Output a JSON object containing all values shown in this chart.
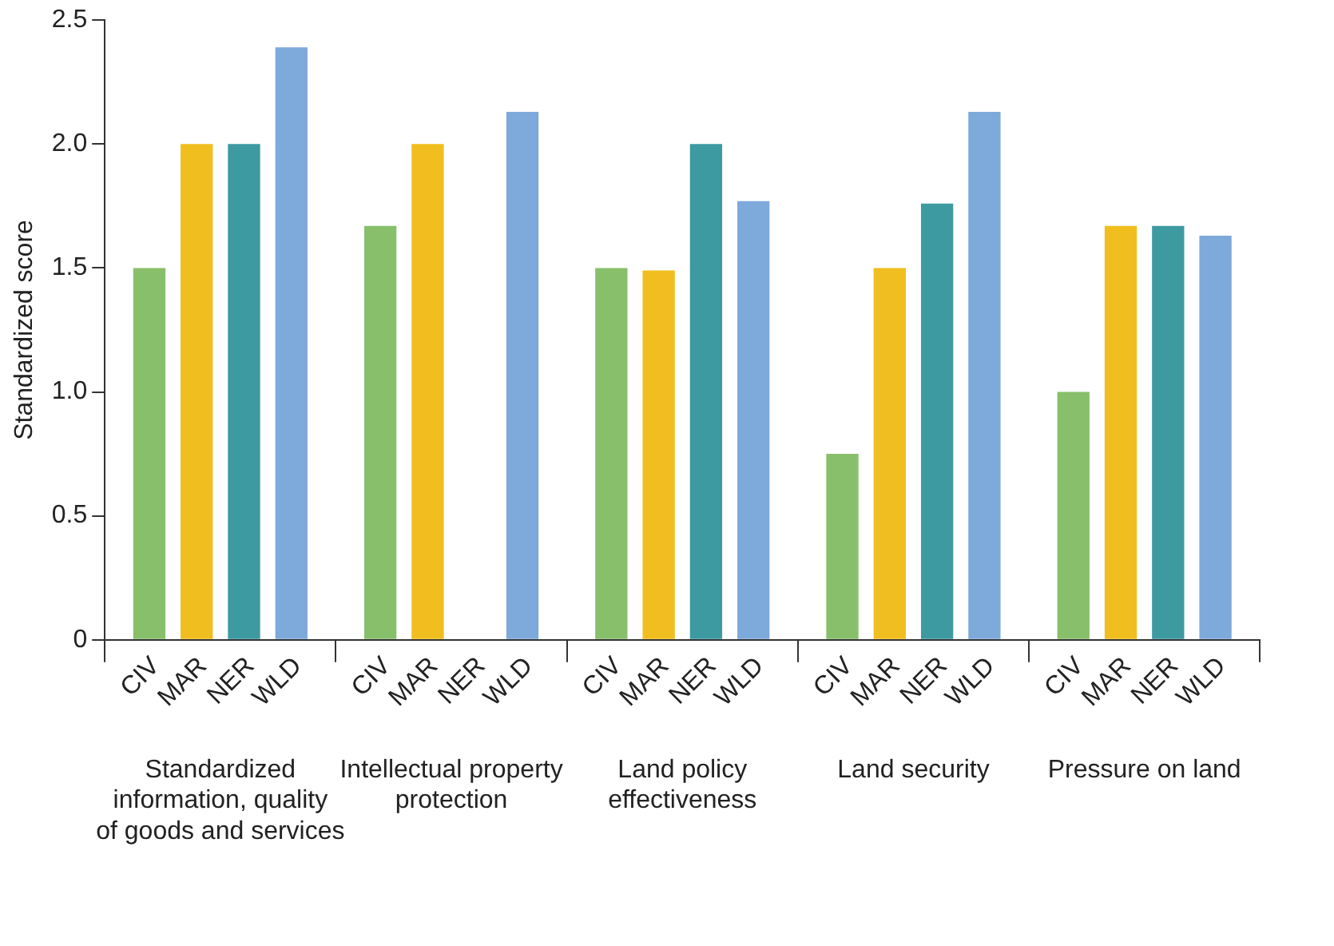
{
  "chart_data": {
    "type": "bar",
    "ylabel": "Standardized score",
    "categories": [
      "Standardized information, quality of goods and services",
      "Intellectual property protection",
      "Land policy effectiveness",
      "Land security",
      "Pressure on land"
    ],
    "series": [
      {
        "name": "CIV",
        "color": "#88bf6b",
        "values": [
          1.5,
          1.67,
          1.5,
          0.75,
          1.0
        ]
      },
      {
        "name": "MAR",
        "color": "#f0be1e",
        "values": [
          2.0,
          2.0,
          1.49,
          1.5,
          1.67
        ]
      },
      {
        "name": "NER",
        "color": "#3d9aa1",
        "values": [
          2.0,
          null,
          2.0,
          1.76,
          1.67
        ]
      },
      {
        "name": "WLD",
        "color": "#7ea9db",
        "values": [
          2.39,
          2.13,
          1.77,
          2.13,
          1.63
        ]
      }
    ],
    "ylim": [
      0,
      2.5
    ],
    "yticks": [
      0,
      0.5,
      {
        "value": 1,
        "label": "1.0"
      },
      1.5,
      {
        "value": 2,
        "label": "2.0"
      },
      2.5
    ]
  }
}
